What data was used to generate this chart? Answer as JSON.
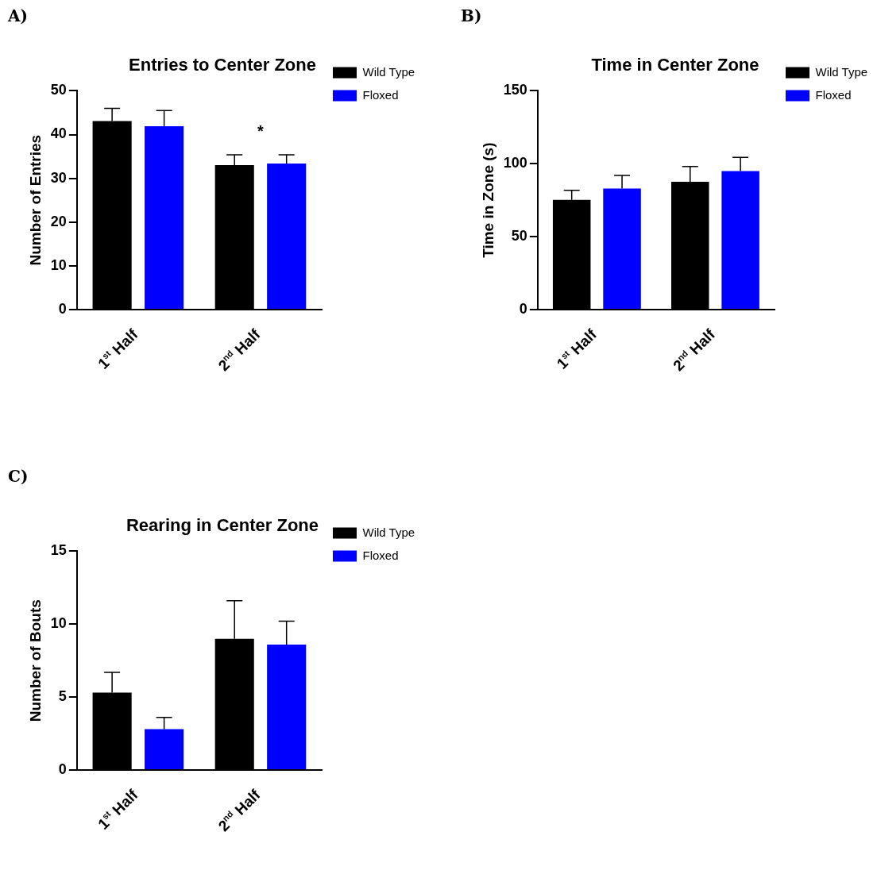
{
  "chart_data": [
    {
      "type": "bar",
      "title": "Entries to Center Zone",
      "ylabel": "Number of Entries",
      "categories": [
        "1$^{st}$ Half",
        "2$^{nd}$ Half"
      ],
      "series": [
        {
          "name": "Wild Type",
          "color": "#000000",
          "values": [
            43.1,
            33.0
          ],
          "errors": [
            2.9,
            2.4
          ]
        },
        {
          "name": "Floxed",
          "color": "#0000ff",
          "values": [
            41.9,
            33.4
          ],
          "errors": [
            3.6,
            2.0
          ]
        }
      ],
      "ylim": [
        0,
        50
      ],
      "yticks": [
        0,
        10,
        20,
        30,
        40,
        50
      ],
      "grid": false,
      "legend": "right",
      "annotations": [
        "A)",
        "*"
      ]
    },
    {
      "type": "bar",
      "title": "Time in Center Zone",
      "ylabel": "Time in Zone (s)",
      "categories": [
        "1$^{st}$ Half",
        "2$^{nd}$ Half"
      ],
      "series": [
        {
          "name": "Wild Type",
          "color": "#000000",
          "values": [
            75.2,
            87.6
          ],
          "errors": [
            6.6,
            10.5
          ]
        },
        {
          "name": "Floxed",
          "color": "#0000ff",
          "values": [
            83.0,
            95.0
          ],
          "errors": [
            9.0,
            9.3
          ]
        }
      ],
      "ylim": [
        0,
        150
      ],
      "yticks": [
        0,
        50,
        100,
        150
      ],
      "grid": false,
      "legend": "right",
      "annotations": [
        "B)"
      ]
    },
    {
      "type": "bar",
      "title": "Rearing in Center Zone",
      "ylabel": "Number of Bouts",
      "categories": [
        "1$^{st}$ Half",
        "2$^{nd}$ Half"
      ],
      "series": [
        {
          "name": "Wild Type",
          "color": "#000000",
          "values": [
            5.3,
            9.0
          ],
          "errors": [
            1.4,
            2.6
          ]
        },
        {
          "name": "Floxed",
          "color": "#0000ff",
          "values": [
            2.8,
            8.6
          ],
          "errors": [
            0.8,
            1.6
          ]
        }
      ],
      "ylim": [
        0,
        15
      ],
      "yticks": [
        0,
        5,
        10,
        15
      ],
      "grid": false,
      "legend": "right",
      "annotations": [
        "C)"
      ]
    }
  ]
}
